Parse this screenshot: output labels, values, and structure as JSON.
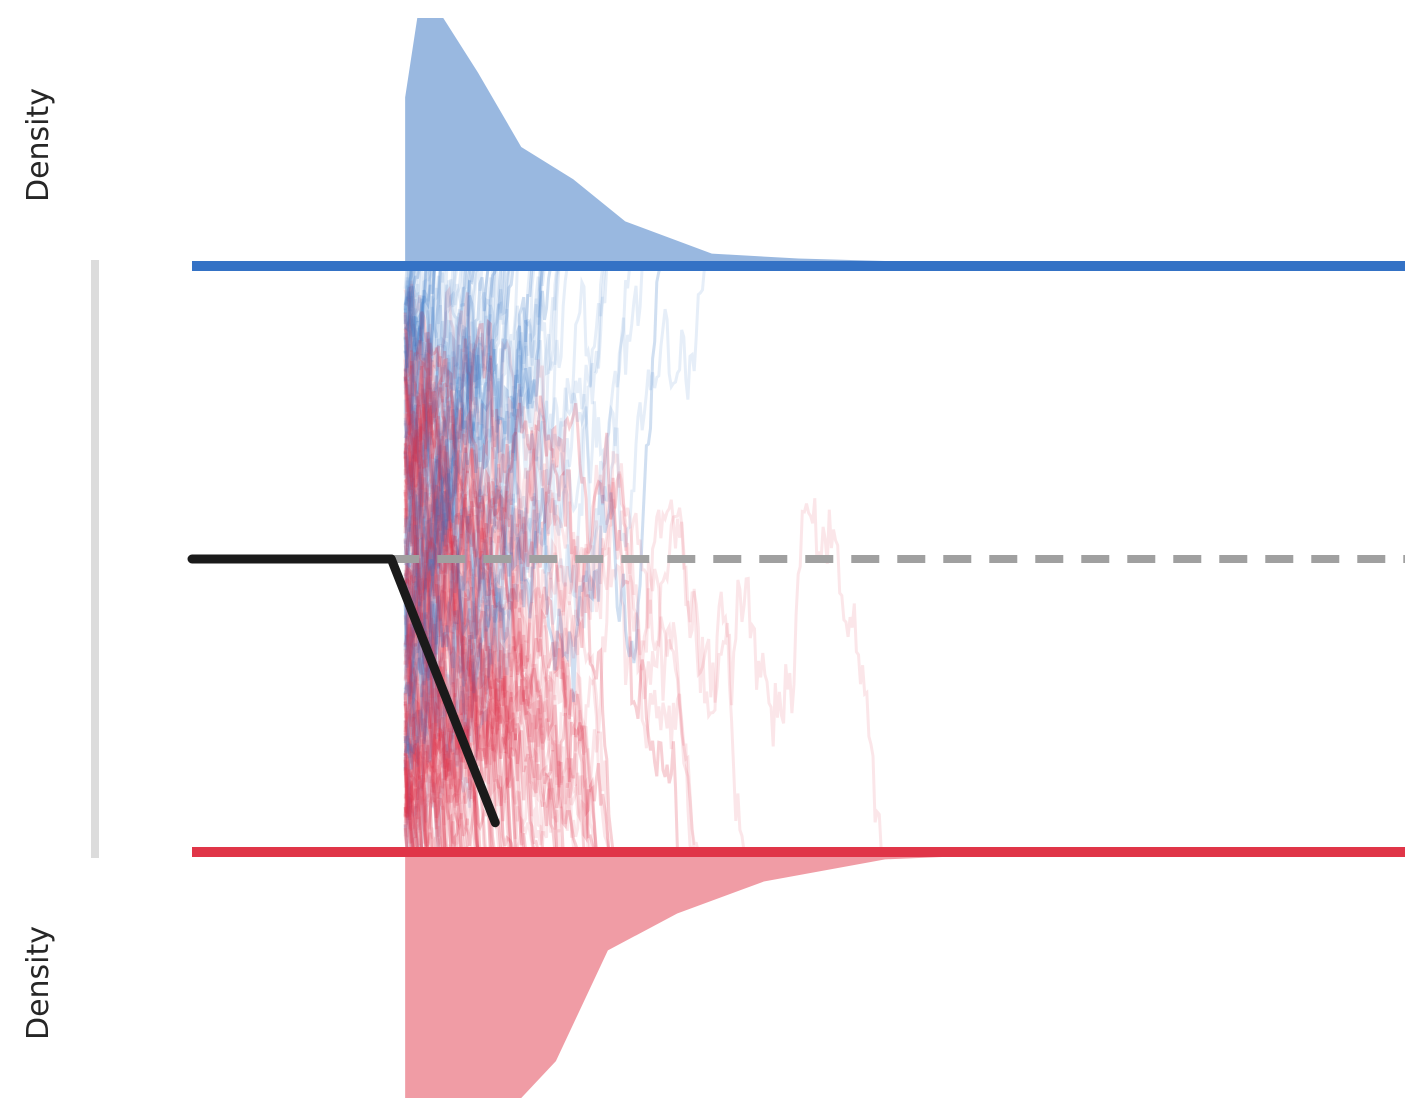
{
  "chart_data": {
    "type": "area",
    "ylabel_top": "Density",
    "ylabel_bottom": "Density",
    "colors": {
      "upper": "#3472C5",
      "upper_fill": "#99B8E0",
      "lower": "#E03548",
      "lower_fill": "#F09CA5",
      "trend": "#1a1a1a",
      "start_point": "#A0A0A0",
      "bound_range": "#DCDCDC"
    },
    "time_range": [
      -1.0,
      6.0
    ],
    "non_decision_time": 0.15,
    "upper_boundary": 1.0,
    "lower_boundary": -1.0,
    "starting_point": 0.0,
    "drift_rate": -1.5,
    "drift_segment_end": 0.75,
    "upper_density": {
      "t": [
        0.23,
        0.3,
        0.45,
        0.65,
        0.9,
        1.2,
        1.5,
        2.0,
        2.5,
        3.0,
        3.5,
        4.0,
        4.5,
        5.0,
        6.0
      ],
      "density": [
        0.68,
        1.0,
        1.0,
        0.78,
        0.48,
        0.35,
        0.18,
        0.05,
        0.03,
        0.02,
        0.02,
        0.015,
        0.01,
        0.0,
        0.0
      ]
    },
    "lower_density": {
      "t": [
        0.23,
        0.5,
        0.9,
        1.1,
        1.4,
        1.8,
        2.3,
        3.0,
        3.5,
        4.0,
        4.5,
        5.0,
        5.5,
        6.0
      ],
      "density": [
        1.0,
        1.0,
        1.0,
        0.85,
        0.4,
        0.25,
        0.12,
        0.03,
        0.015,
        0.01,
        0.0,
        0.01,
        0.0,
        0.0
      ]
    },
    "trajectories": {
      "count": 260,
      "share_upper": 0.35
    }
  }
}
